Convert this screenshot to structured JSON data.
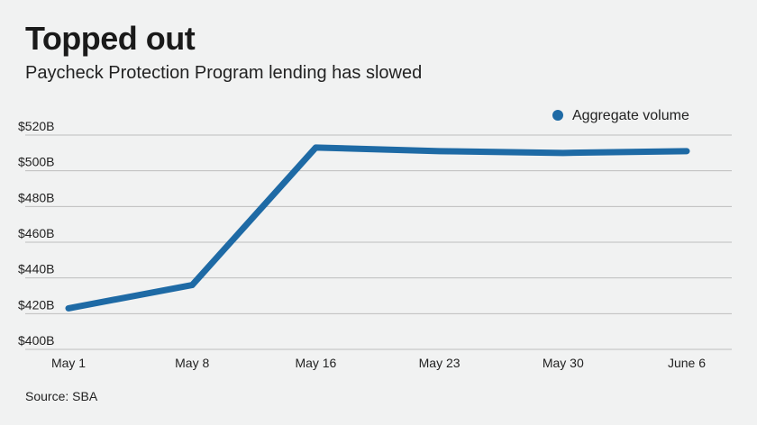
{
  "title": "Topped out",
  "subtitle": "Paycheck Protection Program lending has slowed",
  "source": "Source: SBA",
  "colors": {
    "line": "#1e6aa5",
    "grid": "#bdbdbd",
    "background": "#f1f2f2"
  },
  "chart_data": {
    "type": "line",
    "categories": [
      "May 1",
      "May 8",
      "May 16",
      "May 23",
      "May 30",
      "June 6"
    ],
    "series": [
      {
        "name": "Aggregate volume",
        "values": [
          423,
          436,
          513,
          511,
          510,
          511
        ]
      }
    ],
    "y_ticks": [
      "$400B",
      "$420B",
      "$440B",
      "$460B",
      "$480B",
      "$500B",
      "$520B"
    ],
    "ylim": [
      400,
      520
    ],
    "grid": true,
    "legend_position": "top-right"
  }
}
